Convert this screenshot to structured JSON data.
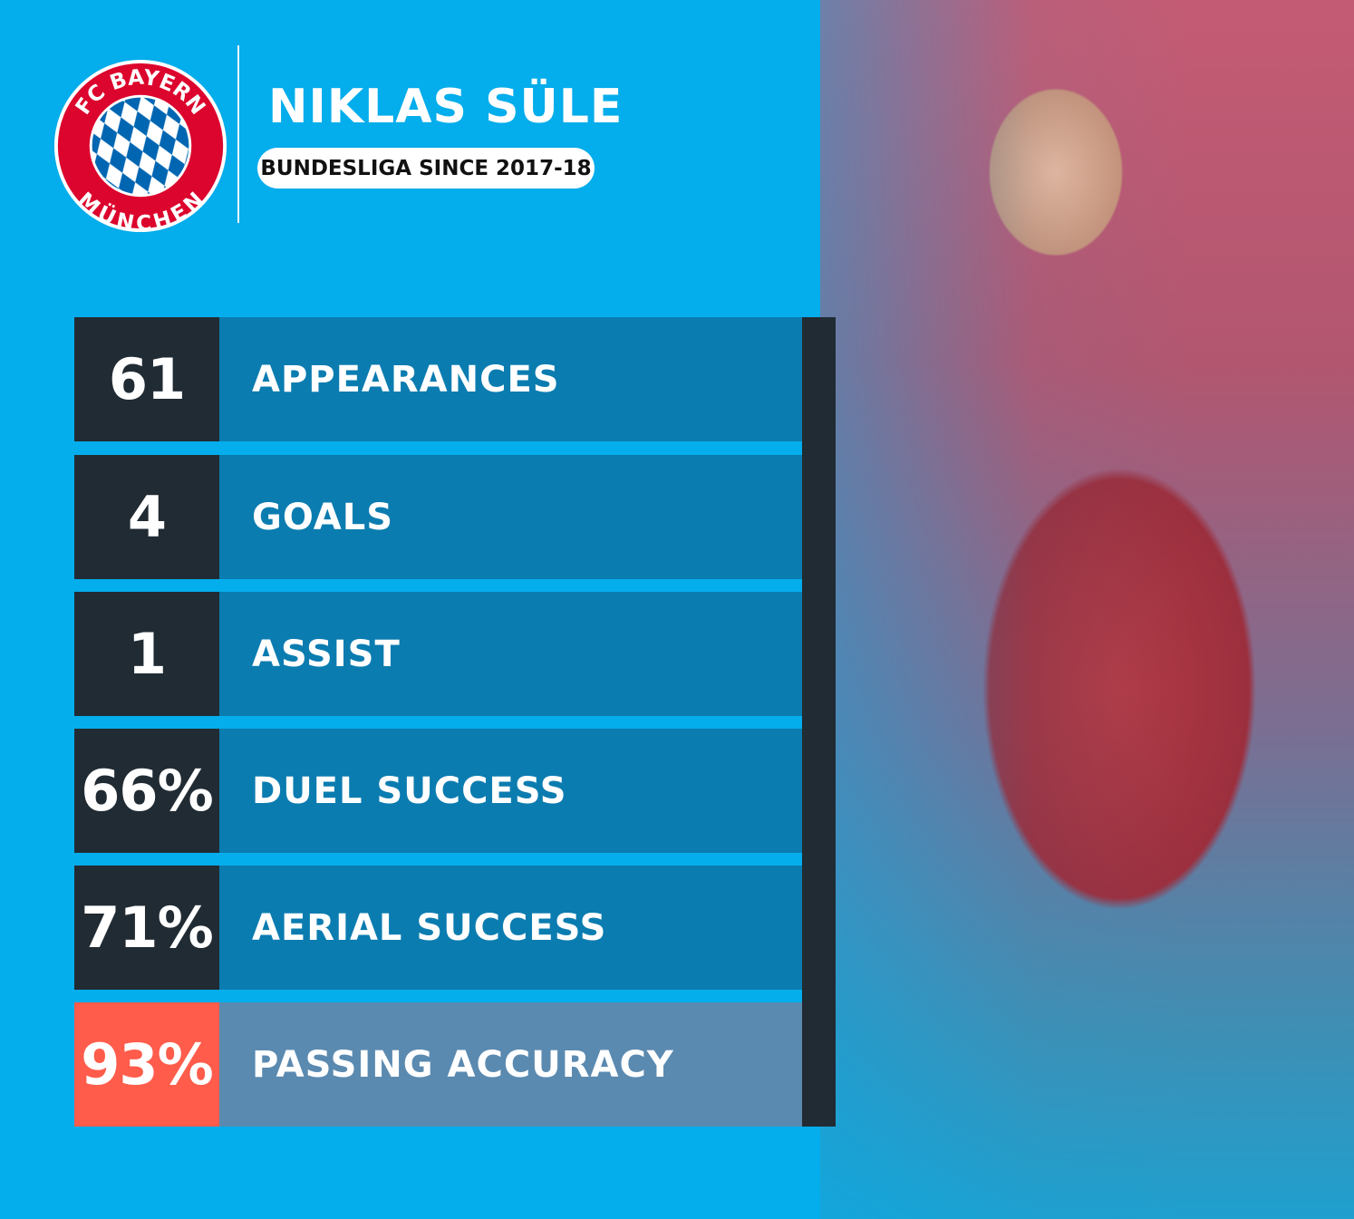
{
  "header": {
    "club_logo_text": [
      "FC BAYERN",
      "MÜNCHEN"
    ],
    "player_name": "NIKLAS SÜLE",
    "subtitle": "BUNDESLIGA SINCE 2017-18"
  },
  "stats": [
    {
      "value": "61",
      "label": "APPEARANCES"
    },
    {
      "value": "4",
      "label": "GOALS"
    },
    {
      "value": "1",
      "label": "ASSIST"
    },
    {
      "value": "66%",
      "label": "DUEL SUCCESS"
    },
    {
      "value": "71%",
      "label": "AERIAL SUCCESS"
    },
    {
      "value": "93%",
      "label": "PASSING ACCURACY",
      "highlighted": true
    }
  ],
  "colors": {
    "background": "#04adeb",
    "number_box": "#212b33",
    "label_box": "#0b7cb0",
    "highlight_number": "#ff5c4b",
    "highlight_label": "#5b8ab0",
    "logo_red": "#dc052d",
    "logo_blue": "#0066b2"
  }
}
